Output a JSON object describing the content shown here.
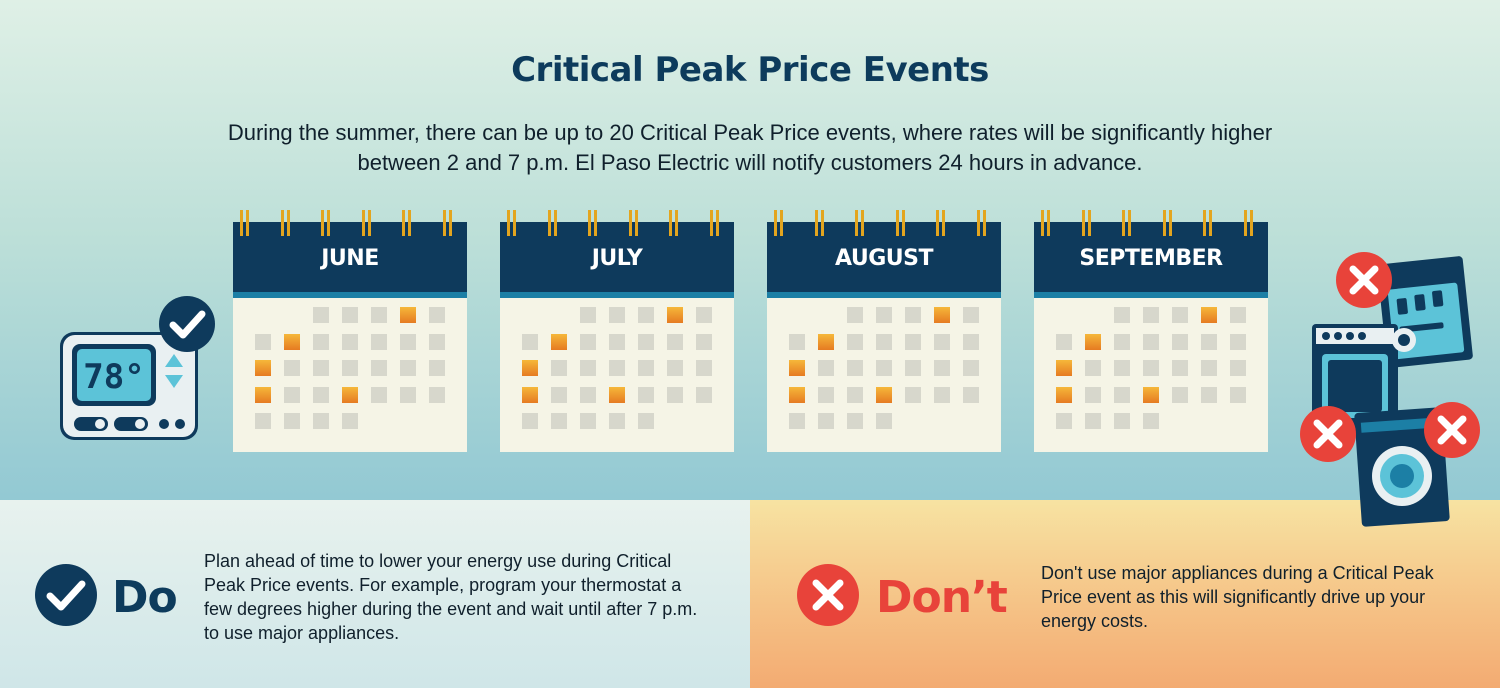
{
  "title": "Critical Peak Price Events",
  "intro": {
    "line1": "During the summer, there can be up to 20 Critical Peak Price events, where rates will be significantly higher",
    "line2": "between 2 and 7 p.m. El Paso Electric will notify customers 24 hours in advance."
  },
  "thermostat": {
    "display": "78°"
  },
  "calendars": [
    {
      "month": "JUNE",
      "start_col": 2,
      "days": 30,
      "event_days": [
        4,
        7,
        13,
        20,
        23
      ]
    },
    {
      "month": "JULY",
      "start_col": 2,
      "days": 31,
      "event_days": [
        4,
        7,
        13,
        20,
        23
      ]
    },
    {
      "month": "AUGUST",
      "start_col": 2,
      "days": 30,
      "event_days": [
        4,
        7,
        13,
        20,
        23
      ]
    },
    {
      "month": "SEPTEMBER",
      "start_col": 2,
      "days": 30,
      "event_days": [
        4,
        7,
        13,
        20,
        23
      ]
    }
  ],
  "do": {
    "label": "Do",
    "text": "Plan ahead of time to lower your energy use during Critical Peak Price events. For example, program your thermostat a few degrees higher during the event and wait until after 7 p.m. to use major appliances."
  },
  "dont": {
    "label": "Don’t",
    "text": "Don't use major appliances during a Critical Peak Price event as this will significantly drive up your energy costs."
  },
  "colors": {
    "navy": "#0e3a5c",
    "accent_blue": "#1c7fa5",
    "event_orange": "#e67b22",
    "day_gray": "#d7d7cc",
    "red": "#e8433a",
    "ring_gold": "#e3a51f"
  }
}
